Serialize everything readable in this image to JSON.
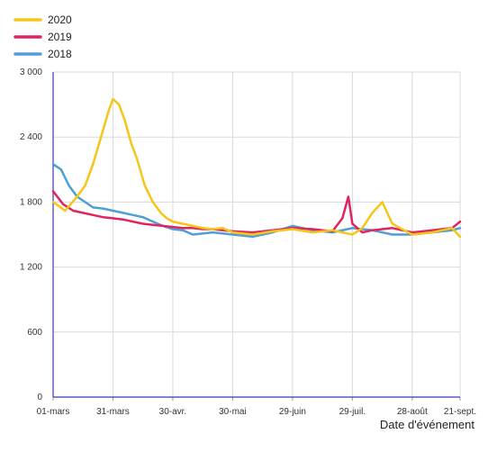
{
  "chart_data": {
    "type": "line",
    "xlabel": "Date d'événement",
    "ylabel": "",
    "ylim": [
      0,
      3000
    ],
    "yticks": [
      0,
      600,
      1200,
      1800,
      2400,
      3000
    ],
    "ytick_labels": [
      "0",
      "600",
      "1 200",
      "1 800",
      "2 400",
      "3 000"
    ],
    "xticks": [
      0,
      30,
      60,
      90,
      120,
      150,
      180,
      204
    ],
    "xtick_labels": [
      "01-mars",
      "31-mars",
      "30-avr.",
      "30-mai",
      "29-juin",
      "29-juil.",
      "28-août",
      "21-sept."
    ],
    "x_unit": "days since 01-mars",
    "grid": true,
    "legend_position": "top-left",
    "series": [
      {
        "name": "2020",
        "color": "#f5c518",
        "x": [
          0,
          6,
          12,
          16,
          20,
          24,
          28,
          30,
          33,
          36,
          39,
          42,
          46,
          50,
          54,
          57,
          60,
          65,
          70,
          75,
          80,
          85,
          90,
          100,
          110,
          120,
          130,
          140,
          150,
          155,
          160,
          165,
          170,
          175,
          180,
          190,
          200,
          204
        ],
        "y": [
          1800,
          1720,
          1850,
          1950,
          2150,
          2400,
          2650,
          2750,
          2700,
          2550,
          2350,
          2200,
          1950,
          1800,
          1700,
          1650,
          1620,
          1600,
          1580,
          1560,
          1550,
          1560,
          1520,
          1500,
          1530,
          1550,
          1520,
          1540,
          1500,
          1560,
          1700,
          1800,
          1600,
          1550,
          1500,
          1520,
          1560,
          1480
        ]
      },
      {
        "name": "2019",
        "color": "#e0245e",
        "x": [
          0,
          5,
          10,
          15,
          20,
          25,
          30,
          35,
          40,
          45,
          50,
          55,
          60,
          65,
          70,
          75,
          80,
          90,
          100,
          110,
          120,
          130,
          140,
          145,
          148,
          150,
          155,
          160,
          170,
          180,
          190,
          200,
          204
        ],
        "y": [
          1900,
          1780,
          1720,
          1700,
          1680,
          1660,
          1650,
          1640,
          1620,
          1600,
          1590,
          1580,
          1570,
          1560,
          1560,
          1550,
          1550,
          1530,
          1520,
          1540,
          1560,
          1550,
          1530,
          1650,
          1850,
          1600,
          1520,
          1540,
          1560,
          1520,
          1540,
          1560,
          1620
        ]
      },
      {
        "name": "2018",
        "color": "#4e9fd6",
        "x": [
          0,
          4,
          8,
          12,
          16,
          20,
          25,
          30,
          35,
          40,
          45,
          50,
          55,
          60,
          65,
          70,
          80,
          90,
          100,
          110,
          120,
          130,
          140,
          150,
          160,
          170,
          180,
          190,
          200,
          204
        ],
        "y": [
          2150,
          2100,
          1950,
          1850,
          1800,
          1750,
          1740,
          1720,
          1700,
          1680,
          1660,
          1620,
          1580,
          1550,
          1540,
          1500,
          1520,
          1500,
          1480,
          1520,
          1580,
          1540,
          1520,
          1560,
          1540,
          1500,
          1500,
          1520,
          1540,
          1560
        ]
      }
    ]
  }
}
